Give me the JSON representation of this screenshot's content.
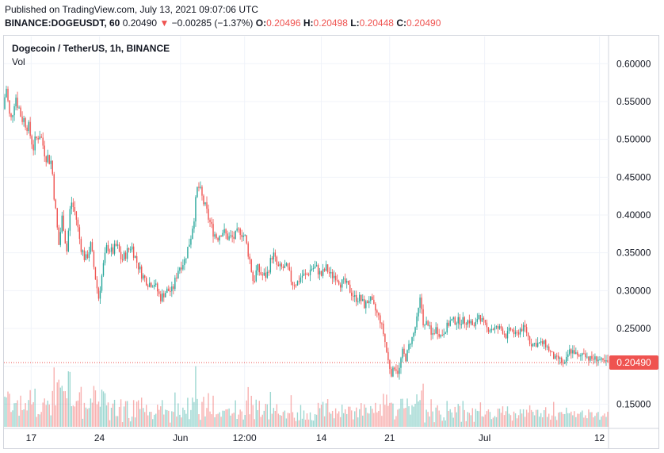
{
  "header": {
    "published": "Published on TradingView.com, July 13, 2021 09:07:06 UTC",
    "symbol_line": "BINANCE:DOGEUSDT, 60",
    "last": "0.20490",
    "arrow": "▼",
    "change": "−0.00285 (−1.37%)",
    "o_label": "O:",
    "o_value": "0.20496",
    "h_label": "H:",
    "h_value": "0.20498",
    "l_label": "L:",
    "l_value": "0.20448",
    "c_label": "C:",
    "c_value": "0.20490"
  },
  "legend": {
    "title": "Dogecoin / TetherUS, 1h, BINANCE",
    "vol": "Vol"
  },
  "colors": {
    "up": "#26a69a",
    "down": "#ef5350",
    "grid": "#f0f3fa",
    "last_price_bg": "#ef5350"
  },
  "chart_data": {
    "type": "candlestick",
    "title": "Dogecoin / TetherUS, 1h, BINANCE",
    "ylim": [
      0.12,
      0.615
    ],
    "y_ticks": [
      "0.60000",
      "0.55000",
      "0.50000",
      "0.45000",
      "0.40000",
      "0.35000",
      "0.30000",
      "0.25000",
      "0.20000",
      "0.15000"
    ],
    "y_tick_values": [
      0.6,
      0.55,
      0.5,
      0.45,
      0.4,
      0.35,
      0.3,
      0.25,
      0.2,
      0.15
    ],
    "x_tick_labels": [
      "17",
      "24",
      "Jun",
      "12:00",
      "14",
      "21",
      "Jul",
      "12"
    ],
    "x_tick_pos": [
      0.045,
      0.158,
      0.292,
      0.398,
      0.525,
      0.638,
      0.795,
      0.985
    ],
    "last_price": "0.20490",
    "last_price_value": 0.2049,
    "grid": true,
    "price_path": [
      [
        0.0,
        0.54
      ],
      [
        0.005,
        0.57
      ],
      [
        0.012,
        0.52
      ],
      [
        0.02,
        0.56
      ],
      [
        0.03,
        0.53
      ],
      [
        0.04,
        0.52
      ],
      [
        0.05,
        0.49
      ],
      [
        0.06,
        0.51
      ],
      [
        0.07,
        0.48
      ],
      [
        0.08,
        0.47
      ],
      [
        0.085,
        0.42
      ],
      [
        0.092,
        0.36
      ],
      [
        0.098,
        0.4
      ],
      [
        0.105,
        0.35
      ],
      [
        0.112,
        0.42
      ],
      [
        0.12,
        0.4
      ],
      [
        0.128,
        0.36
      ],
      [
        0.136,
        0.34
      ],
      [
        0.145,
        0.36
      ],
      [
        0.152,
        0.32
      ],
      [
        0.158,
        0.29
      ],
      [
        0.165,
        0.33
      ],
      [
        0.172,
        0.36
      ],
      [
        0.18,
        0.35
      ],
      [
        0.188,
        0.36
      ],
      [
        0.196,
        0.34
      ],
      [
        0.204,
        0.35
      ],
      [
        0.212,
        0.36
      ],
      [
        0.22,
        0.34
      ],
      [
        0.23,
        0.32
      ],
      [
        0.24,
        0.31
      ],
      [
        0.25,
        0.31
      ],
      [
        0.26,
        0.29
      ],
      [
        0.27,
        0.3
      ],
      [
        0.28,
        0.3
      ],
      [
        0.29,
        0.33
      ],
      [
        0.3,
        0.34
      ],
      [
        0.31,
        0.37
      ],
      [
        0.316,
        0.4
      ],
      [
        0.322,
        0.44
      ],
      [
        0.33,
        0.42
      ],
      [
        0.338,
        0.4
      ],
      [
        0.346,
        0.38
      ],
      [
        0.354,
        0.37
      ],
      [
        0.362,
        0.38
      ],
      [
        0.372,
        0.37
      ],
      [
        0.382,
        0.37
      ],
      [
        0.392,
        0.38
      ],
      [
        0.4,
        0.37
      ],
      [
        0.408,
        0.34
      ],
      [
        0.414,
        0.31
      ],
      [
        0.42,
        0.33
      ],
      [
        0.428,
        0.32
      ],
      [
        0.436,
        0.32
      ],
      [
        0.446,
        0.35
      ],
      [
        0.454,
        0.33
      ],
      [
        0.462,
        0.33
      ],
      [
        0.47,
        0.33
      ],
      [
        0.478,
        0.31
      ],
      [
        0.486,
        0.31
      ],
      [
        0.494,
        0.32
      ],
      [
        0.502,
        0.32
      ],
      [
        0.51,
        0.33
      ],
      [
        0.518,
        0.33
      ],
      [
        0.526,
        0.32
      ],
      [
        0.534,
        0.33
      ],
      [
        0.542,
        0.32
      ],
      [
        0.55,
        0.32
      ],
      [
        0.558,
        0.31
      ],
      [
        0.566,
        0.31
      ],
      [
        0.574,
        0.3
      ],
      [
        0.582,
        0.29
      ],
      [
        0.59,
        0.29
      ],
      [
        0.598,
        0.28
      ],
      [
        0.606,
        0.29
      ],
      [
        0.612,
        0.28
      ],
      [
        0.618,
        0.27
      ],
      [
        0.624,
        0.26
      ],
      [
        0.63,
        0.24
      ],
      [
        0.636,
        0.21
      ],
      [
        0.642,
        0.19
      ],
      [
        0.648,
        0.2
      ],
      [
        0.654,
        0.19
      ],
      [
        0.66,
        0.22
      ],
      [
        0.666,
        0.21
      ],
      [
        0.672,
        0.23
      ],
      [
        0.678,
        0.24
      ],
      [
        0.684,
        0.26
      ],
      [
        0.69,
        0.29
      ],
      [
        0.696,
        0.25
      ],
      [
        0.702,
        0.26
      ],
      [
        0.708,
        0.24
      ],
      [
        0.716,
        0.25
      ],
      [
        0.724,
        0.24
      ],
      [
        0.732,
        0.25
      ],
      [
        0.74,
        0.26
      ],
      [
        0.748,
        0.26
      ],
      [
        0.756,
        0.26
      ],
      [
        0.764,
        0.26
      ],
      [
        0.772,
        0.26
      ],
      [
        0.78,
        0.25
      ],
      [
        0.786,
        0.27
      ],
      [
        0.792,
        0.26
      ],
      [
        0.8,
        0.25
      ],
      [
        0.808,
        0.25
      ],
      [
        0.816,
        0.25
      ],
      [
        0.824,
        0.25
      ],
      [
        0.832,
        0.24
      ],
      [
        0.84,
        0.25
      ],
      [
        0.848,
        0.24
      ],
      [
        0.856,
        0.25
      ],
      [
        0.864,
        0.25
      ],
      [
        0.872,
        0.23
      ],
      [
        0.88,
        0.23
      ],
      [
        0.888,
        0.23
      ],
      [
        0.896,
        0.23
      ],
      [
        0.904,
        0.22
      ],
      [
        0.912,
        0.21
      ],
      [
        0.92,
        0.21
      ],
      [
        0.928,
        0.2
      ],
      [
        0.936,
        0.22
      ],
      [
        0.944,
        0.22
      ],
      [
        0.952,
        0.21
      ],
      [
        0.96,
        0.22
      ],
      [
        0.968,
        0.21
      ],
      [
        0.976,
        0.21
      ],
      [
        0.984,
        0.21
      ],
      [
        0.992,
        0.205
      ],
      [
        1.0,
        0.2049
      ]
    ]
  }
}
